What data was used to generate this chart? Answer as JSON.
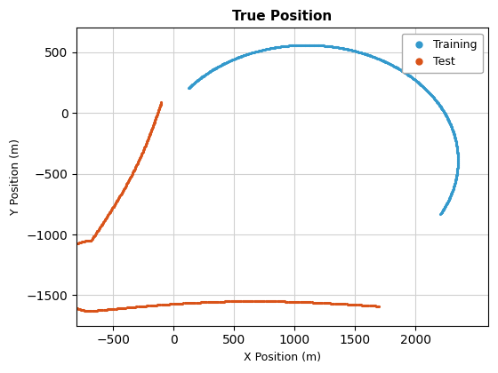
{
  "title": "True Position",
  "xlabel": "X Position (m)",
  "ylabel": "Y Position (m)",
  "training_color": "#3399CC",
  "test_color": "#D95319",
  "marker": ".",
  "markersize": 2.5,
  "background_color": "#ffffff",
  "grid_color": "#d0d0d0",
  "xlim": [
    -800,
    2600
  ],
  "ylim": [
    -1750,
    700
  ],
  "xticks": [
    -500,
    0,
    500,
    1000,
    1500,
    2000
  ],
  "yticks": [
    -1500,
    -1000,
    -500,
    0,
    500
  ]
}
